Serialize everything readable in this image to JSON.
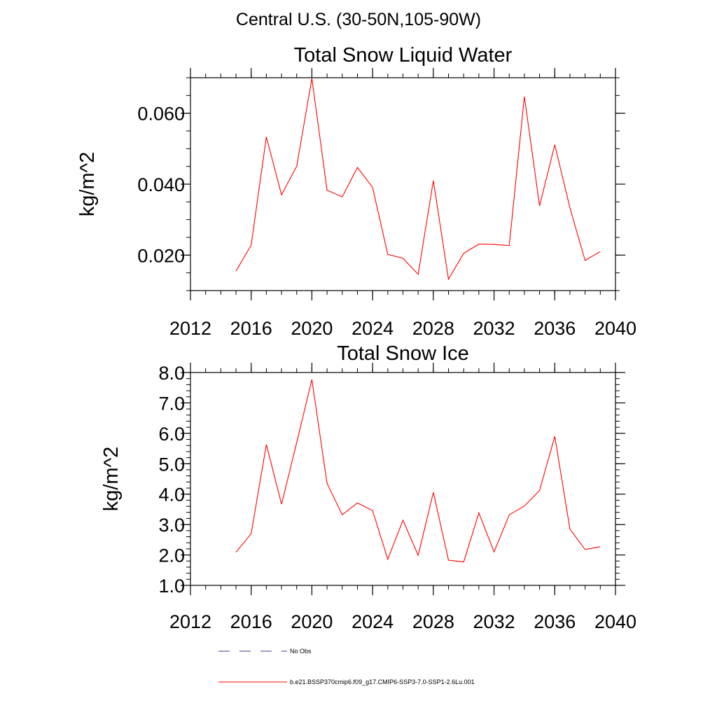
{
  "page": {
    "title": "Central U.S. (30-50N,105-90W)"
  },
  "chart_data": [
    {
      "type": "line",
      "title": "Total Snow Liquid Water",
      "ylabel": "kg/m^2",
      "xlabel": "",
      "xlim": [
        2012,
        2040
      ],
      "ylim": [
        0.01,
        0.07
      ],
      "xticks": [
        2012,
        2016,
        2020,
        2024,
        2028,
        2032,
        2036,
        2040
      ],
      "xtick_labels": [
        "2012",
        "2016",
        "2020",
        "2024",
        "2028",
        "2032",
        "2036",
        "2040"
      ],
      "yticks": [
        0.02,
        0.04,
        0.06
      ],
      "ytick_labels": [
        "0.020",
        "0.040",
        "0.060"
      ],
      "x_minor_step": 1,
      "y_minor_step": 0.005,
      "series": [
        {
          "name": "b.e21.BSSP370cmip6.f09_g17.CMIP6-SSP3-7.0-SSP1-2.6Lu.001",
          "color": "#ff0000",
          "x": [
            2015,
            2016,
            2017,
            2018,
            2019,
            2020,
            2021,
            2022,
            2023,
            2024,
            2025,
            2026,
            2027,
            2028,
            2029,
            2030,
            2031,
            2032,
            2033,
            2034,
            2035,
            2036,
            2037,
            2038,
            2039
          ],
          "y": [
            0.0155,
            0.0228,
            0.0533,
            0.037,
            0.0451,
            0.0698,
            0.0383,
            0.0364,
            0.0447,
            0.0391,
            0.0202,
            0.0191,
            0.0146,
            0.041,
            0.0132,
            0.0205,
            0.0231,
            0.023,
            0.0227,
            0.0647,
            0.0339,
            0.0511,
            0.0333,
            0.0185,
            0.021
          ]
        }
      ]
    },
    {
      "type": "line",
      "title": "Total Snow Ice",
      "ylabel": "kg/m^2",
      "xlabel": "",
      "xlim": [
        2012,
        2040
      ],
      "ylim": [
        1.0,
        8.0
      ],
      "xticks": [
        2012,
        2016,
        2020,
        2024,
        2028,
        2032,
        2036,
        2040
      ],
      "xtick_labels": [
        "2012",
        "2016",
        "2020",
        "2024",
        "2028",
        "2032",
        "2036",
        "2040"
      ],
      "yticks": [
        1,
        2,
        3,
        4,
        5,
        6,
        7,
        8
      ],
      "ytick_labels": [
        "1.0",
        "2.0",
        "3.0",
        "4.0",
        "5.0",
        "6.0",
        "7.0",
        "8.0"
      ],
      "x_minor_step": 1,
      "y_minor_step": 0.2,
      "series": [
        {
          "name": "b.e21.BSSP370cmip6.f09_g17.CMIP6-SSP3-7.0-SSP1-2.6Lu.001",
          "color": "#ff0000",
          "x": [
            2015,
            2016,
            2017,
            2018,
            2019,
            2020,
            2021,
            2022,
            2023,
            2024,
            2025,
            2026,
            2027,
            2028,
            2029,
            2030,
            2031,
            2032,
            2033,
            2034,
            2035,
            2036,
            2037,
            2038,
            2039
          ],
          "y": [
            2.09,
            2.7,
            5.63,
            3.67,
            5.7,
            7.77,
            4.35,
            3.32,
            3.71,
            3.46,
            1.86,
            3.14,
            1.99,
            4.06,
            1.83,
            1.77,
            3.38,
            2.1,
            3.32,
            3.61,
            4.12,
            5.9,
            2.85,
            2.18,
            2.27
          ]
        }
      ]
    }
  ],
  "legend": {
    "placement": "bottom",
    "entries": [
      {
        "label": "No Obs",
        "style": "dashed",
        "color": "#3b3b8c"
      },
      {
        "label": "b.e21.BSSP370cmip6.f09_g17.CMIP6-SSP3-7.0-SSP1-2.6Lu.001",
        "style": "solid",
        "color": "#ff0000"
      }
    ]
  }
}
